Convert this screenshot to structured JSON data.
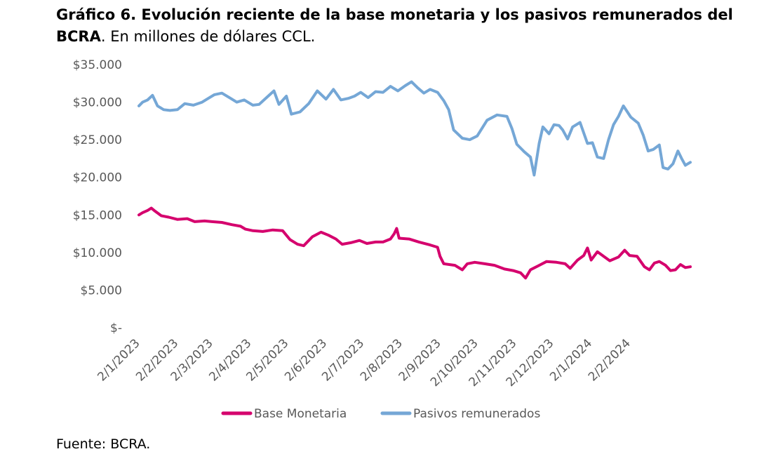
{
  "title": {
    "bold": "Gráfico 6. Evolución reciente de la base monetaria y los pasivos remunerados del BCRA",
    "rest": ". En millones de dólares CCL."
  },
  "source": "Fuente: BCRA.",
  "colors": {
    "base": "#d5006d",
    "pasivos": "#75a7d6",
    "axis": "#595959"
  },
  "chart_data": {
    "type": "line",
    "xlabel": "",
    "ylabel": "",
    "ylim": [
      0,
      35000
    ],
    "y_ticks": [
      0,
      5000,
      10000,
      15000,
      20000,
      25000,
      30000,
      35000
    ],
    "y_tick_labels": [
      "$-",
      "$5.000",
      "$10.000",
      "$15.000",
      "$20.000",
      "$25.000",
      "$30.000",
      "$35.000"
    ],
    "x_ticks": [
      "2/1/2023",
      "2/2/2023",
      "2/3/2023",
      "2/4/2023",
      "2/5/2023",
      "2/6/2023",
      "2/7/2023",
      "2/8/2023",
      "2/9/2023",
      "2/10/2023",
      "2/11/2023",
      "2/12/2023",
      "2/1/2024",
      "2/2/2024"
    ],
    "legend_position": "bottom",
    "grid": false,
    "series": [
      {
        "name": "Base Monetaria",
        "color": "#d5006d",
        "points": [
          [
            "2/1/2023",
            15000
          ],
          [
            "5/1/2023",
            15300
          ],
          [
            "9/1/2023",
            15600
          ],
          [
            "12/1/2023",
            15900
          ],
          [
            "15/1/2023",
            15500
          ],
          [
            "20/1/2023",
            14900
          ],
          [
            "26/1/2023",
            14700
          ],
          [
            "2/2/2023",
            14400
          ],
          [
            "10/2/2023",
            14500
          ],
          [
            "16/2/2023",
            14100
          ],
          [
            "24/2/2023",
            14200
          ],
          [
            "2/3/2023",
            14100
          ],
          [
            "10/3/2023",
            14000
          ],
          [
            "18/3/2023",
            13700
          ],
          [
            "25/3/2023",
            13500
          ],
          [
            "29/3/2023",
            13100
          ],
          [
            "4/4/2023",
            12900
          ],
          [
            "12/4/2023",
            12800
          ],
          [
            "20/4/2023",
            13000
          ],
          [
            "28/4/2023",
            12900
          ],
          [
            "4/5/2023",
            11700
          ],
          [
            "10/5/2023",
            11100
          ],
          [
            "15/5/2023",
            10900
          ],
          [
            "22/5/2023",
            12100
          ],
          [
            "29/5/2023",
            12700
          ],
          [
            "4/6/2023",
            12300
          ],
          [
            "10/6/2023",
            11800
          ],
          [
            "15/6/2023",
            11100
          ],
          [
            "22/6/2023",
            11300
          ],
          [
            "29/6/2023",
            11600
          ],
          [
            "5/7/2023",
            11200
          ],
          [
            "12/7/2023",
            11400
          ],
          [
            "18/7/2023",
            11400
          ],
          [
            "24/7/2023",
            11800
          ],
          [
            "27/7/2023",
            12500
          ],
          [
            "29/7/2023",
            13200
          ],
          [
            "31/7/2023",
            11900
          ],
          [
            "8/8/2023",
            11800
          ],
          [
            "16/8/2023",
            11400
          ],
          [
            "25/8/2023",
            11000
          ],
          [
            "31/8/2023",
            10700
          ],
          [
            "2/9/2023",
            9500
          ],
          [
            "5/9/2023",
            8500
          ],
          [
            "14/9/2023",
            8300
          ],
          [
            "20/9/2023",
            7700
          ],
          [
            "24/9/2023",
            8500
          ],
          [
            "30/9/2023",
            8700
          ],
          [
            "8/10/2023",
            8500
          ],
          [
            "16/10/2023",
            8300
          ],
          [
            "24/10/2023",
            7800
          ],
          [
            "31/10/2023",
            7600
          ],
          [
            "6/11/2023",
            7300
          ],
          [
            "10/11/2023",
            6600
          ],
          [
            "14/11/2023",
            7700
          ],
          [
            "20/11/2023",
            8200
          ],
          [
            "27/11/2023",
            8800
          ],
          [
            "5/12/2023",
            8700
          ],
          [
            "12/12/2023",
            8500
          ],
          [
            "16/12/2023",
            7900
          ],
          [
            "22/12/2023",
            9000
          ],
          [
            "27/12/2023",
            9600
          ],
          [
            "30/12/2023",
            10600
          ],
          [
            "2/1/2024",
            9000
          ],
          [
            "7/1/2024",
            10100
          ],
          [
            "12/1/2024",
            9500
          ],
          [
            "17/1/2024",
            8900
          ],
          [
            "24/1/2024",
            9400
          ],
          [
            "29/1/2024",
            10300
          ],
          [
            "2/2/2024",
            9600
          ],
          [
            "8/2/2024",
            9500
          ],
          [
            "14/2/2024",
            8100
          ],
          [
            "18/2/2024",
            7700
          ],
          [
            "22/2/2024",
            8600
          ],
          [
            "26/2/2024",
            8800
          ],
          [
            "2/3/2024",
            8300
          ],
          [
            "6/3/2024",
            7600
          ],
          [
            "10/3/2024",
            7700
          ],
          [
            "14/3/2024",
            8400
          ],
          [
            "18/3/2024",
            8000
          ],
          [
            "22/3/2024",
            8100
          ]
        ]
      },
      {
        "name": "Pasivos remunerados",
        "color": "#75a7d6",
        "points": [
          [
            "2/1/2023",
            29500
          ],
          [
            "5/1/2023",
            30000
          ],
          [
            "9/1/2023",
            30300
          ],
          [
            "13/1/2023",
            30900
          ],
          [
            "17/1/2023",
            29500
          ],
          [
            "22/1/2023",
            29000
          ],
          [
            "27/1/2023",
            28900
          ],
          [
            "2/2/2023",
            29000
          ],
          [
            "8/2/2023",
            29800
          ],
          [
            "15/2/2023",
            29600
          ],
          [
            "22/2/2023",
            30000
          ],
          [
            "28/2/2023",
            30600
          ],
          [
            "4/3/2023",
            31000
          ],
          [
            "10/3/2023",
            31200
          ],
          [
            "16/3/2023",
            30600
          ],
          [
            "22/3/2023",
            30000
          ],
          [
            "28/3/2023",
            30300
          ],
          [
            "4/4/2023",
            29600
          ],
          [
            "9/4/2023",
            29700
          ],
          [
            "15/4/2023",
            30600
          ],
          [
            "21/4/2023",
            31500
          ],
          [
            "25/4/2023",
            29700
          ],
          [
            "1/5/2023",
            30800
          ],
          [
            "5/5/2023",
            28400
          ],
          [
            "12/5/2023",
            28700
          ],
          [
            "19/5/2023",
            29800
          ],
          [
            "26/5/2023",
            31500
          ],
          [
            "2/6/2023",
            30400
          ],
          [
            "8/6/2023",
            31700
          ],
          [
            "14/6/2023",
            30300
          ],
          [
            "20/6/2023",
            30500
          ],
          [
            "25/6/2023",
            30800
          ],
          [
            "30/6/2023",
            31300
          ],
          [
            "6/7/2023",
            30600
          ],
          [
            "12/7/2023",
            31400
          ],
          [
            "18/7/2023",
            31300
          ],
          [
            "24/7/2023",
            32100
          ],
          [
            "30/7/2023",
            31500
          ],
          [
            "5/8/2023",
            32200
          ],
          [
            "10/8/2023",
            32700
          ],
          [
            "15/8/2023",
            31900
          ],
          [
            "20/8/2023",
            31200
          ],
          [
            "25/8/2023",
            31700
          ],
          [
            "31/8/2023",
            31300
          ],
          [
            "5/9/2023",
            30200
          ],
          [
            "9/9/2023",
            29000
          ],
          [
            "13/9/2023",
            26300
          ],
          [
            "20/9/2023",
            25200
          ],
          [
            "26/9/2023",
            25000
          ],
          [
            "2/10/2023",
            25500
          ],
          [
            "10/10/2023",
            27600
          ],
          [
            "18/10/2023",
            28300
          ],
          [
            "26/10/2023",
            28100
          ],
          [
            "30/10/2023",
            26500
          ],
          [
            "3/11/2023",
            24400
          ],
          [
            "9/11/2023",
            23400
          ],
          [
            "14/11/2023",
            22700
          ],
          [
            "17/11/2023",
            20300
          ],
          [
            "21/11/2023",
            24500
          ],
          [
            "24/11/2023",
            26700
          ],
          [
            "29/11/2023",
            25800
          ],
          [
            "3/12/2023",
            27000
          ],
          [
            "7/12/2023",
            26900
          ],
          [
            "10/12/2023",
            26300
          ],
          [
            "14/12/2023",
            25100
          ],
          [
            "18/12/2023",
            26700
          ],
          [
            "24/12/2023",
            27300
          ],
          [
            "30/12/2023",
            24500
          ],
          [
            "3/1/2024",
            24600
          ],
          [
            "7/1/2024",
            22700
          ],
          [
            "12/1/2024",
            22500
          ],
          [
            "16/1/2024",
            25000
          ],
          [
            "20/1/2024",
            27000
          ],
          [
            "24/1/2024",
            28100
          ],
          [
            "28/1/2024",
            29500
          ],
          [
            "3/2/2024",
            28000
          ],
          [
            "9/2/2024",
            27200
          ],
          [
            "13/2/2024",
            25600
          ],
          [
            "17/2/2024",
            23500
          ],
          [
            "21/2/2024",
            23700
          ],
          [
            "26/2/2024",
            24300
          ],
          [
            "29/2/2024",
            21300
          ],
          [
            "4/3/2024",
            21100
          ],
          [
            "8/3/2024",
            21800
          ],
          [
            "12/3/2024",
            23500
          ],
          [
            "15/3/2024",
            22500
          ],
          [
            "18/3/2024",
            21600
          ],
          [
            "22/3/2024",
            22000
          ]
        ]
      }
    ]
  }
}
